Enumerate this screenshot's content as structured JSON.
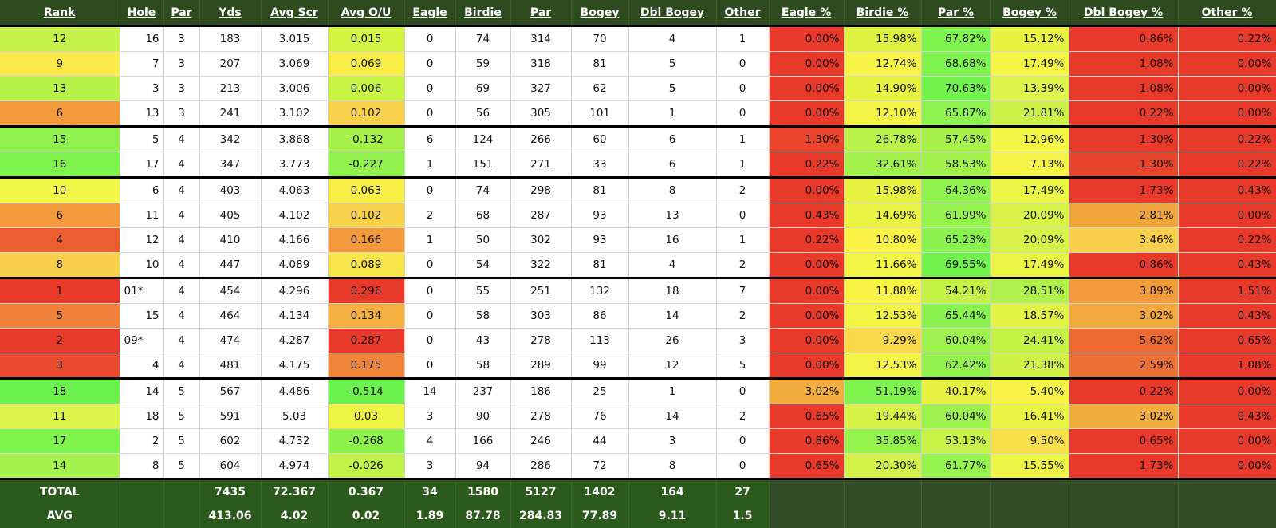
{
  "colors": {
    "header_bg": "#2e4a1f",
    "total_bg": "#2c5a1c",
    "pct_footer_bg": "#324c25"
  },
  "columns": [
    "Rank",
    "Hole",
    "Par",
    "Yds",
    "Avg Scr",
    "Avg O/U",
    "Eagle",
    "Birdie",
    "Par",
    "Bogey",
    "Dbl Bogey",
    "Other",
    "Eagle %",
    "Birdie %",
    "Par %",
    "Bogey %",
    "Dbl Bogey %",
    "Other %"
  ],
  "rows": [
    {
      "rank": "12",
      "hole": "16",
      "par": "3",
      "yds": "183",
      "avg_scr": "3.015",
      "avg_ou": "0.015",
      "eagle": "0",
      "birdie": "74",
      "par_n": "314",
      "bogey": "70",
      "dbl": "4",
      "other": "1",
      "eagle_pct": "0.00%",
      "birdie_pct": "15.98%",
      "par_pct": "67.82%",
      "bogey_pct": "15.12%",
      "dbl_pct": "0.86%",
      "other_pct": "0.22%",
      "rank_color": "#c5f24a",
      "ou_color": "#d2f542",
      "colors": [
        "#e8392a",
        "#dcf23f",
        "#7ff34e",
        "#e8f340",
        "#e8392a",
        "#e8392a"
      ]
    },
    {
      "rank": "9",
      "hole": "7",
      "par": "3",
      "yds": "207",
      "avg_scr": "3.069",
      "avg_ou": "0.069",
      "eagle": "0",
      "birdie": "59",
      "par_n": "318",
      "bogey": "81",
      "dbl": "5",
      "other": "0",
      "eagle_pct": "0.00%",
      "birdie_pct": "12.74%",
      "par_pct": "68.68%",
      "bogey_pct": "17.49%",
      "dbl_pct": "1.08%",
      "other_pct": "0.00%",
      "rank_color": "#fbe94a",
      "ou_color": "#f9ee46",
      "colors": [
        "#e8392a",
        "#f6f446",
        "#7ff34e",
        "#f3f743",
        "#e8392a",
        "#e8392a"
      ]
    },
    {
      "rank": "13",
      "hole": "3",
      "par": "3",
      "yds": "213",
      "avg_scr": "3.006",
      "avg_ou": "0.006",
      "eagle": "0",
      "birdie": "69",
      "par_n": "327",
      "bogey": "62",
      "dbl": "5",
      "other": "0",
      "eagle_pct": "0.00%",
      "birdie_pct": "14.90%",
      "par_pct": "70.63%",
      "bogey_pct": "13.39%",
      "dbl_pct": "1.08%",
      "other_pct": "0.00%",
      "rank_color": "#b6f247",
      "ou_color": "#c8f443",
      "colors": [
        "#e8392a",
        "#e6f341",
        "#72f24c",
        "#dcf44c",
        "#e8392a",
        "#e8392a"
      ]
    },
    {
      "rank": "6",
      "hole": "13",
      "par": "3",
      "yds": "241",
      "avg_scr": "3.102",
      "avg_ou": "0.102",
      "eagle": "0",
      "birdie": "56",
      "par_n": "305",
      "bogey": "101",
      "dbl": "1",
      "other": "0",
      "eagle_pct": "0.00%",
      "birdie_pct": "12.10%",
      "par_pct": "65.87%",
      "bogey_pct": "21.81%",
      "dbl_pct": "0.22%",
      "other_pct": "0.00%",
      "rank_color": "#f39a3c",
      "ou_color": "#f8d24a",
      "colors": [
        "#e8392a",
        "#f4f546",
        "#8ef250",
        "#cdf247",
        "#e8392a",
        "#e8392a"
      ]
    },
    {
      "rank": "15",
      "hole": "5",
      "par": "4",
      "yds": "342",
      "avg_scr": "3.868",
      "avg_ou": "-0.132",
      "eagle": "6",
      "birdie": "124",
      "par_n": "266",
      "bogey": "60",
      "dbl": "6",
      "other": "1",
      "eagle_pct": "1.30%",
      "birdie_pct": "26.78%",
      "par_pct": "57.45%",
      "bogey_pct": "12.96%",
      "dbl_pct": "1.30%",
      "other_pct": "0.22%",
      "rank_color": "#8ff24e",
      "ou_color": "#a6f24b",
      "colors": [
        "#ea452c",
        "#b9f249",
        "#a6f24b",
        "#f4f646",
        "#e8392a",
        "#e8392a"
      ]
    },
    {
      "rank": "16",
      "hole": "17",
      "par": "4",
      "yds": "347",
      "avg_scr": "3.773",
      "avg_ou": "-0.227",
      "eagle": "1",
      "birdie": "151",
      "par_n": "271",
      "bogey": "33",
      "dbl": "6",
      "other": "1",
      "eagle_pct": "0.22%",
      "birdie_pct": "32.61%",
      "par_pct": "58.53%",
      "bogey_pct": "7.13%",
      "dbl_pct": "1.30%",
      "other_pct": "0.22%",
      "rank_color": "#7ff34e",
      "ou_color": "#91f24d",
      "colors": [
        "#e8392a",
        "#a2f24b",
        "#a2f24b",
        "#f4f346",
        "#e8442c",
        "#e8392a"
      ]
    },
    {
      "rank": "10",
      "hole": "6",
      "par": "4",
      "yds": "403",
      "avg_scr": "4.063",
      "avg_ou": "0.063",
      "eagle": "0",
      "birdie": "74",
      "par_n": "298",
      "bogey": "81",
      "dbl": "8",
      "other": "2",
      "eagle_pct": "0.00%",
      "birdie_pct": "15.98%",
      "par_pct": "64.36%",
      "bogey_pct": "17.49%",
      "dbl_pct": "1.73%",
      "other_pct": "0.43%",
      "rank_color": "#f2f646",
      "ou_color": "#f8ef46",
      "colors": [
        "#e8392a",
        "#e8f341",
        "#90f34f",
        "#eaf544",
        "#e8392a",
        "#e8392a"
      ]
    },
    {
      "rank": "6",
      "hole": "11",
      "par": "4",
      "yds": "405",
      "avg_scr": "4.102",
      "avg_ou": "0.102",
      "eagle": "2",
      "birdie": "68",
      "par_n": "287",
      "bogey": "93",
      "dbl": "13",
      "other": "0",
      "eagle_pct": "0.43%",
      "birdie_pct": "14.69%",
      "par_pct": "61.99%",
      "bogey_pct": "20.09%",
      "dbl_pct": "2.81%",
      "other_pct": "0.00%",
      "rank_color": "#f39a3c",
      "ou_color": "#f8d24a",
      "colors": [
        "#e8392a",
        "#eaf443",
        "#96f24d",
        "#d8f247",
        "#f0a43c",
        "#e8392a"
      ]
    },
    {
      "rank": "4",
      "hole": "12",
      "par": "4",
      "yds": "410",
      "avg_scr": "4.166",
      "avg_ou": "0.166",
      "eagle": "1",
      "birdie": "50",
      "par_n": "302",
      "bogey": "93",
      "dbl": "16",
      "other": "1",
      "eagle_pct": "0.22%",
      "birdie_pct": "10.80%",
      "par_pct": "65.23%",
      "bogey_pct": "20.09%",
      "dbl_pct": "3.46%",
      "other_pct": "0.22%",
      "rank_color": "#ec5d30",
      "ou_color": "#f39a3c",
      "colors": [
        "#e8392a",
        "#fbf446",
        "#8af24f",
        "#d8f247",
        "#f8cf4a",
        "#e8392a"
      ]
    },
    {
      "rank": "8",
      "hole": "10",
      "par": "4",
      "yds": "447",
      "avg_scr": "4.089",
      "avg_ou": "0.089",
      "eagle": "0",
      "birdie": "54",
      "par_n": "322",
      "bogey": "81",
      "dbl": "4",
      "other": "2",
      "eagle_pct": "0.00%",
      "birdie_pct": "11.66%",
      "par_pct": "69.55%",
      "bogey_pct": "17.49%",
      "dbl_pct": "0.86%",
      "other_pct": "0.43%",
      "rank_color": "#f9d04a",
      "ou_color": "#f8e549",
      "colors": [
        "#e8392a",
        "#f3f646",
        "#72f24c",
        "#eaf544",
        "#e8392a",
        "#e8392a"
      ]
    },
    {
      "rank": "1",
      "hole": "01*",
      "par": "4",
      "yds": "454",
      "avg_scr": "4.296",
      "avg_ou": "0.296",
      "eagle": "0",
      "birdie": "55",
      "par_n": "251",
      "bogey": "132",
      "dbl": "18",
      "other": "7",
      "eagle_pct": "0.00%",
      "birdie_pct": "11.88%",
      "par_pct": "54.21%",
      "bogey_pct": "28.51%",
      "dbl_pct": "3.89%",
      "other_pct": "1.51%",
      "rank_color": "#e8392a",
      "ou_color": "#e8392a",
      "colors": [
        "#e8392a",
        "#f8f446",
        "#c4f247",
        "#b0f24b",
        "#f39a3c",
        "#e8392a"
      ]
    },
    {
      "rank": "5",
      "hole": "15",
      "par": "4",
      "yds": "464",
      "avg_scr": "4.134",
      "avg_ou": "0.134",
      "eagle": "0",
      "birdie": "58",
      "par_n": "303",
      "bogey": "86",
      "dbl": "14",
      "other": "2",
      "eagle_pct": "0.00%",
      "birdie_pct": "12.53%",
      "par_pct": "65.44%",
      "bogey_pct": "18.57%",
      "dbl_pct": "3.02%",
      "other_pct": "0.43%",
      "rank_color": "#f0823a",
      "ou_color": "#f5b03f",
      "colors": [
        "#e8392a",
        "#f2f546",
        "#8af24f",
        "#e2f345",
        "#f3a83e",
        "#e8392a"
      ]
    },
    {
      "rank": "2",
      "hole": "09*",
      "par": "4",
      "yds": "474",
      "avg_scr": "4.287",
      "avg_ou": "0.287",
      "eagle": "0",
      "birdie": "43",
      "par_n": "278",
      "bogey": "113",
      "dbl": "26",
      "other": "3",
      "eagle_pct": "0.00%",
      "birdie_pct": "9.29%",
      "par_pct": "60.04%",
      "bogey_pct": "24.41%",
      "dbl_pct": "5.62%",
      "other_pct": "0.65%",
      "rank_color": "#e8392a",
      "ou_color": "#e8392a",
      "colors": [
        "#e8392a",
        "#f9d84a",
        "#9df24d",
        "#c4f247",
        "#ec6a32",
        "#e8392a"
      ]
    },
    {
      "rank": "3",
      "hole": "4",
      "par": "4",
      "yds": "481",
      "avg_scr": "4.175",
      "avg_ou": "0.175",
      "eagle": "0",
      "birdie": "58",
      "par_n": "289",
      "bogey": "99",
      "dbl": "12",
      "other": "5",
      "eagle_pct": "0.00%",
      "birdie_pct": "12.53%",
      "par_pct": "62.42%",
      "bogey_pct": "21.38%",
      "dbl_pct": "2.59%",
      "other_pct": "1.08%",
      "rank_color": "#ea4a2e",
      "ou_color": "#f0853a",
      "colors": [
        "#e8392a",
        "#f4f546",
        "#94f24d",
        "#d0f247",
        "#ec7034",
        "#e8392a"
      ]
    },
    {
      "rank": "18",
      "hole": "14",
      "par": "5",
      "yds": "567",
      "avg_scr": "4.486",
      "avg_ou": "-0.514",
      "eagle": "14",
      "birdie": "237",
      "par_n": "186",
      "bogey": "25",
      "dbl": "1",
      "other": "0",
      "eagle_pct": "3.02%",
      "birdie_pct": "51.19%",
      "par_pct": "40.17%",
      "bogey_pct": "5.40%",
      "dbl_pct": "0.22%",
      "other_pct": "0.00%",
      "rank_color": "#6cf24c",
      "ou_color": "#6cf24c",
      "colors": [
        "#f3ad3f",
        "#7ff34e",
        "#e8f341",
        "#f8f446",
        "#e8392a",
        "#e8392a"
      ]
    },
    {
      "rank": "11",
      "hole": "18",
      "par": "5",
      "yds": "591",
      "avg_scr": "5.03",
      "avg_ou": "0.03",
      "eagle": "3",
      "birdie": "90",
      "par_n": "278",
      "bogey": "76",
      "dbl": "14",
      "other": "2",
      "eagle_pct": "0.65%",
      "birdie_pct": "19.44%",
      "par_pct": "60.04%",
      "bogey_pct": "16.41%",
      "dbl_pct": "3.02%",
      "other_pct": "0.43%",
      "rank_color": "#dbf449",
      "ou_color": "#eef543",
      "colors": [
        "#e8392a",
        "#d6f247",
        "#9df24d",
        "#eaf443",
        "#f3ad3f",
        "#e8392a"
      ]
    },
    {
      "rank": "17",
      "hole": "2",
      "par": "5",
      "yds": "602",
      "avg_scr": "4.732",
      "avg_ou": "-0.268",
      "eagle": "4",
      "birdie": "166",
      "par_n": "246",
      "bogey": "44",
      "dbl": "3",
      "other": "0",
      "eagle_pct": "0.86%",
      "birdie_pct": "35.85%",
      "par_pct": "53.13%",
      "bogey_pct": "9.50%",
      "dbl_pct": "0.65%",
      "other_pct": "0.00%",
      "rank_color": "#7ff34e",
      "ou_color": "#8ef24d",
      "colors": [
        "#e8392a",
        "#96f24d",
        "#c8f247",
        "#f8e04a",
        "#e8392a",
        "#e8392a"
      ]
    },
    {
      "rank": "14",
      "hole": "8",
      "par": "5",
      "yds": "604",
      "avg_scr": "4.974",
      "avg_ou": "-0.026",
      "eagle": "3",
      "birdie": "94",
      "par_n": "286",
      "bogey": "72",
      "dbl": "8",
      "other": "0",
      "eagle_pct": "0.65%",
      "birdie_pct": "20.30%",
      "par_pct": "61.77%",
      "bogey_pct": "15.55%",
      "dbl_pct": "1.73%",
      "other_pct": "0.00%",
      "rank_color": "#a4f24b",
      "ou_color": "#c0f247",
      "colors": [
        "#e8392a",
        "#d2f247",
        "#96f24d",
        "#eef544",
        "#e8392a",
        "#e8392a"
      ]
    }
  ],
  "total": {
    "label": "TOTAL",
    "yds": "7435",
    "avg_scr": "72.367",
    "avg_ou": "0.367",
    "eagle": "34",
    "birdie": "1580",
    "par_n": "5127",
    "bogey": "1402",
    "dbl": "164",
    "other": "27"
  },
  "avg": {
    "label": "AVG",
    "yds": "413.06",
    "avg_scr": "4.02",
    "avg_ou": "0.02",
    "eagle": "1.89",
    "birdie": "87.78",
    "par_n": "284.83",
    "bogey": "77.89",
    "dbl": "9.11",
    "other": "1.5"
  }
}
